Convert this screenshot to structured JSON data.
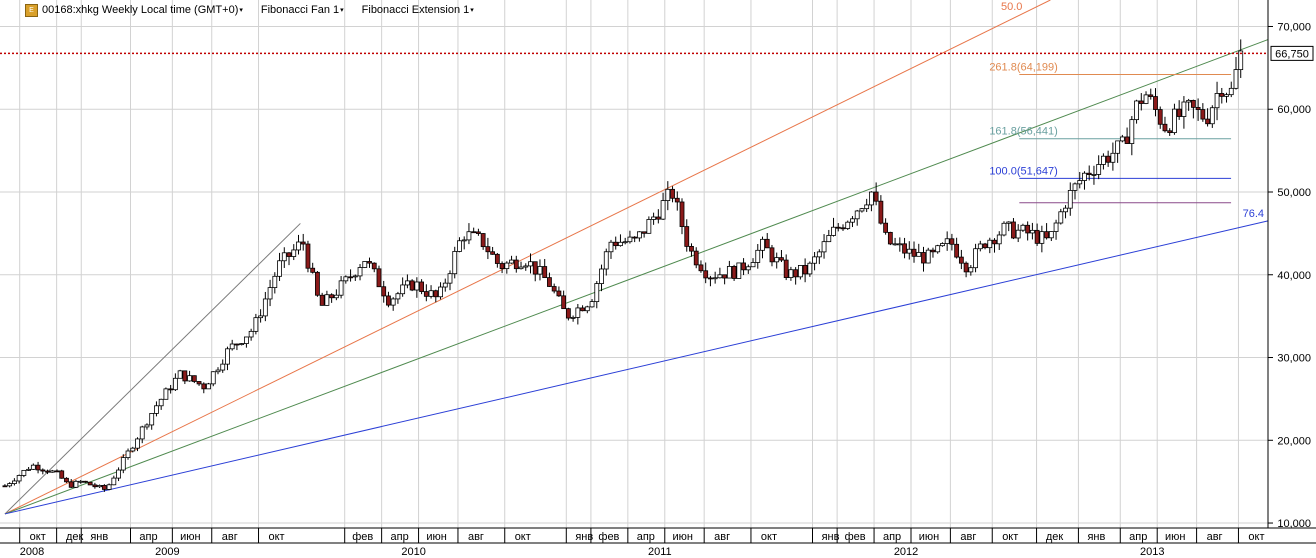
{
  "header": {
    "symbol": "00168:xhkg Weekly Local time (GMT+0)",
    "fan": "Fibonacci Fan 1",
    "extension": "Fibonacci Extension 1",
    "caret": "▾"
  },
  "colors": {
    "background": "#ffffff",
    "grid": "#d2d2d2",
    "up_candle": "#ffffff",
    "down_candle": "#8b1a1a",
    "fan_50": "#e8764a",
    "fan_618": "#4f8a4f",
    "fan_764": "#2b3fd6",
    "trigger_line": "#7a7a7a",
    "price_line": "#c00000",
    "fib_2618": "#e08a50",
    "fib_1618": "#6aa0a0",
    "fib_100": "#2b3fd6",
    "fib_0": "#8a4a8a"
  },
  "chart_data": {
    "type": "candlestick",
    "title": "00168:xhkg Weekly Local time (GMT+0)",
    "y_axis": {
      "ticks": [
        "10,000",
        "20,000",
        "30,000",
        "40,000",
        "50,000",
        "60,000",
        "70,000"
      ],
      "tick_values": [
        10000,
        20000,
        30000,
        40000,
        50000,
        60000,
        70000
      ],
      "ylim": [
        9400,
        73200
      ],
      "position": "right"
    },
    "x_axis": {
      "months": [
        {
          "label": "окт",
          "x": 2008.8
        },
        {
          "label": "дек",
          "x": 2008.95
        },
        {
          "label": "янв",
          "x": 2009.05
        },
        {
          "label": "апр",
          "x": 2009.25
        },
        {
          "label": "июн",
          "x": 2009.42
        },
        {
          "label": "авг",
          "x": 2009.58
        },
        {
          "label": "окт",
          "x": 2009.77
        },
        {
          "label": "фев",
          "x": 2010.12
        },
        {
          "label": "апр",
          "x": 2010.27
        },
        {
          "label": "июн",
          "x": 2010.42
        },
        {
          "label": "авг",
          "x": 2010.58
        },
        {
          "label": "окт",
          "x": 2010.77
        },
        {
          "label": "янв",
          "x": 2011.02
        },
        {
          "label": "фев",
          "x": 2011.12
        },
        {
          "label": "апр",
          "x": 2011.27
        },
        {
          "label": "июн",
          "x": 2011.42
        },
        {
          "label": "авг",
          "x": 2011.58
        },
        {
          "label": "окт",
          "x": 2011.77
        },
        {
          "label": "янв",
          "x": 2012.02
        },
        {
          "label": "фев",
          "x": 2012.12
        },
        {
          "label": "апр",
          "x": 2012.27
        },
        {
          "label": "июн",
          "x": 2012.42
        },
        {
          "label": "авг",
          "x": 2012.58
        },
        {
          "label": "окт",
          "x": 2012.75
        },
        {
          "label": "дек",
          "x": 2012.93
        },
        {
          "label": "янв",
          "x": 2013.1
        },
        {
          "label": "апр",
          "x": 2013.27
        },
        {
          "label": "июн",
          "x": 2013.42
        },
        {
          "label": "авг",
          "x": 2013.58
        },
        {
          "label": "окт",
          "x": 2013.75
        }
      ],
      "years": [
        {
          "label": "2008",
          "x": 2008.85
        },
        {
          "label": "2009",
          "x": 2009.4
        },
        {
          "label": "2010",
          "x": 2010.4
        },
        {
          "label": "2011",
          "x": 2011.4
        },
        {
          "label": "2012",
          "x": 2012.4
        },
        {
          "label": "2013",
          "x": 2013.4
        }
      ],
      "xlim": [
        2008.72,
        2013.87
      ]
    },
    "waypoints": [
      [
        2008.74,
        14500
      ],
      [
        2008.85,
        17000
      ],
      [
        2008.95,
        16000
      ],
      [
        2009.0,
        14500
      ],
      [
        2009.05,
        15000
      ],
      [
        2009.15,
        14000
      ],
      [
        2009.25,
        19000
      ],
      [
        2009.35,
        24000
      ],
      [
        2009.45,
        28000
      ],
      [
        2009.55,
        26500
      ],
      [
        2009.65,
        31000
      ],
      [
        2009.75,
        33500
      ],
      [
        2009.85,
        41000
      ],
      [
        2009.95,
        44000
      ],
      [
        2010.02,
        36000
      ],
      [
        2010.12,
        39000
      ],
      [
        2010.2,
        42000
      ],
      [
        2010.3,
        37000
      ],
      [
        2010.4,
        39000
      ],
      [
        2010.5,
        37000
      ],
      [
        2010.6,
        45000
      ],
      [
        2010.68,
        44000
      ],
      [
        2010.75,
        41000
      ],
      [
        2010.85,
        42000
      ],
      [
        2010.95,
        39000
      ],
      [
        2011.02,
        35000
      ],
      [
        2011.12,
        37000
      ],
      [
        2011.2,
        44000
      ],
      [
        2011.3,
        44000
      ],
      [
        2011.4,
        48000
      ],
      [
        2011.45,
        50000
      ],
      [
        2011.52,
        43000
      ],
      [
        2011.6,
        40000
      ],
      [
        2011.72,
        40500
      ],
      [
        2011.82,
        43500
      ],
      [
        2011.92,
        40000
      ],
      [
        2012.0,
        40500
      ],
      [
        2012.1,
        45000
      ],
      [
        2012.2,
        48000
      ],
      [
        2012.26,
        50000
      ],
      [
        2012.32,
        44000
      ],
      [
        2012.42,
        42500
      ],
      [
        2012.5,
        42000
      ],
      [
        2012.58,
        44000
      ],
      [
        2012.65,
        41000
      ],
      [
        2012.72,
        44000
      ],
      [
        2012.8,
        45500
      ],
      [
        2012.9,
        45000
      ],
      [
        2012.98,
        44000
      ],
      [
        2013.05,
        49000
      ],
      [
        2013.12,
        52000
      ],
      [
        2013.2,
        54000
      ],
      [
        2013.28,
        55500
      ],
      [
        2013.33,
        60000
      ],
      [
        2013.37,
        62000
      ],
      [
        2013.45,
        58000
      ],
      [
        2013.55,
        60000
      ],
      [
        2013.62,
        59000
      ],
      [
        2013.68,
        63000
      ],
      [
        2013.72,
        62000
      ],
      [
        2013.76,
        66750
      ]
    ],
    "current_price": {
      "value": 66750,
      "label": "66,750"
    },
    "fibonacci_fan": {
      "name": "Fibonacci Fan 1",
      "origin": [
        2008.74,
        11100
      ],
      "trigger": [
        2009.94,
        46200
      ],
      "levels": [
        {
          "label": "50.0",
          "level": 0.5
        },
        {
          "label": "",
          "level": 0.618
        },
        {
          "label": "76.4",
          "level": 0.764
        }
      ]
    },
    "fibonacci_extension": {
      "name": "Fibonacci Extension 1",
      "x_start": 2012.86,
      "x_end": 2013.72,
      "levels": [
        {
          "label": "261.8(64,199)",
          "value": 64199
        },
        {
          "label": "161.8(56,441)",
          "value": 56441
        },
        {
          "label": "100.0(51,647)",
          "value": 51647
        },
        {
          "label": "",
          "value": 48700
        }
      ]
    },
    "grid": true
  }
}
